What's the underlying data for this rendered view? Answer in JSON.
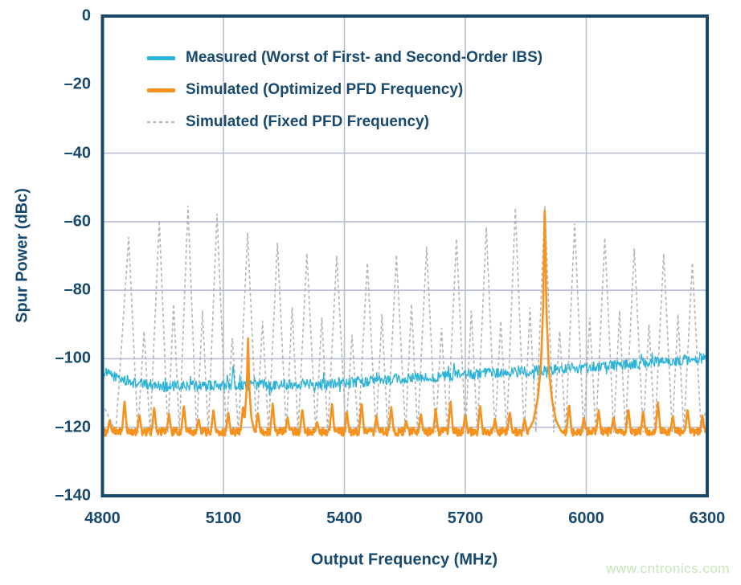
{
  "watermark": {
    "text": "www.cntronics.com",
    "color": "#c6e7b7"
  },
  "colors": {
    "frame": "#17486c",
    "text": "#17496e",
    "grid": "#b9bfd2",
    "measured": "#2bb3d8",
    "optimized": "#f6921e",
    "fixed": "#b4b4b4",
    "background": "#ffffff"
  },
  "chart_data": {
    "type": "line",
    "title": "",
    "xlabel": "Output Frequency (MHz)",
    "ylabel": "Spur Power (dBc)",
    "xlim": [
      4800,
      6300
    ],
    "ylim": [
      -140,
      0
    ],
    "xticks": [
      4800,
      5100,
      5400,
      5700,
      6000,
      6300
    ],
    "xtick_labels": [
      "4800",
      "5100",
      "5400",
      "5700",
      "6000",
      "6300"
    ],
    "yticks": [
      0,
      -20,
      -40,
      -60,
      -80,
      -100,
      -120,
      -140
    ],
    "ytick_labels": [
      "0",
      "–20",
      "–40",
      "–60",
      "–80",
      "–100",
      "–120",
      "–140"
    ],
    "grid_x": [
      5100,
      5400,
      5700,
      6000
    ],
    "grid_y": [
      -40,
      -60,
      -80,
      -100,
      -120
    ],
    "grid_on": true,
    "legend_position": "top-left",
    "series": [
      {
        "name": "Measured (Worst of First- and Second-Order IBS)",
        "type": "noisy-line",
        "color_key": "measured",
        "trend": [
          [
            4800,
            -103.8
          ],
          [
            4870,
            -106.9
          ],
          [
            4960,
            -108.1
          ],
          [
            5120,
            -107.7
          ],
          [
            5300,
            -107.3
          ],
          [
            5450,
            -106.7
          ],
          [
            5600,
            -105.4
          ],
          [
            5750,
            -104.4
          ],
          [
            5900,
            -103.3
          ],
          [
            6050,
            -102.1
          ],
          [
            6160,
            -101.2
          ],
          [
            6300,
            -99.8
          ]
        ],
        "noise_db": 1.6,
        "spur_blips": [
          [
            5124,
            -101.2
          ],
          [
            5672,
            -100.5
          ],
          [
            6137,
            -97.8
          ]
        ]
      },
      {
        "name": "Simulated (Optimized PFD Frequency)",
        "type": "spur-line",
        "color_key": "optimized",
        "baseline_db": -121.3,
        "baseline_noise_db": 1.2,
        "ripple_start_mhz": 4818,
        "ripple_spacing_mhz": 36.75,
        "ripple_halfwidth_mhz": 7,
        "ripple_peaks_db": [
          -116.5,
          -113.5,
          -117,
          -114.5,
          -116,
          -113
        ],
        "major_spikes": [
          {
            "freq_mhz": 5161,
            "peak_db": -93,
            "tail": [
              [
                0,
                -93
              ],
              [
                3,
                -108
              ],
              [
                8,
                -117
              ],
              [
                16,
                -121.3
              ]
            ]
          },
          {
            "freq_mhz": 5897,
            "peak_db": -55,
            "tail": [
              [
                0,
                -55
              ],
              [
                4,
                -85
              ],
              [
                10,
                -103
              ],
              [
                18,
                -112
              ],
              [
                28,
                -118
              ],
              [
                42,
                -121.5
              ]
            ]
          }
        ]
      },
      {
        "name": "Simulated (Fixed PFD Frequency)",
        "type": "dashed-spur-line",
        "color_key": "fixed",
        "valley_db": -121.5,
        "major_spikes": [
          [
            4865,
            -64.5
          ],
          [
            4941,
            -59.6
          ],
          [
            5012,
            -55.3
          ],
          [
            5084,
            -57.7
          ],
          [
            5160,
            -63.1
          ],
          [
            5234,
            -66.1
          ],
          [
            5307,
            -69.2
          ],
          [
            5381,
            -69.9
          ],
          [
            5457,
            -72
          ],
          [
            5529,
            -69.7
          ],
          [
            5604,
            -67.3
          ],
          [
            5678,
            -65
          ],
          [
            5752,
            -61.6
          ],
          [
            5824,
            -56
          ],
          [
            5897,
            -55.5
          ],
          [
            5971,
            -60.5
          ],
          [
            6046,
            -64.7
          ],
          [
            6119,
            -67.8
          ],
          [
            6192,
            -69.4
          ],
          [
            6263,
            -72
          ]
        ],
        "minor_spikes_db": [
          -92,
          -84,
          -86,
          -94,
          -89,
          -85,
          -88,
          -93,
          -87,
          -84,
          -91,
          -86,
          -89,
          -85,
          -92,
          -88,
          -86,
          -90,
          -87
        ],
        "edge_db": -113
      }
    ]
  }
}
